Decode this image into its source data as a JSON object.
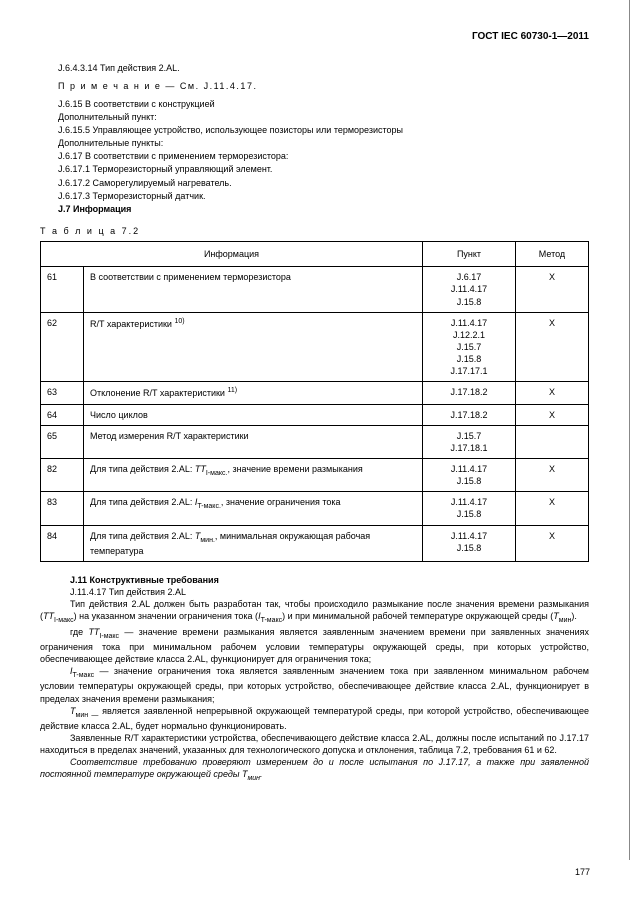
{
  "header": "ГОСТ IEC 60730-1—2011",
  "pre_text": [
    {
      "text": "J.6.4.3.14 Тип действия 2.AL."
    },
    {
      "text": "П р и м е ч а н и е  — См.  J.11.4.17.",
      "cls": "note"
    },
    {
      "text": "J.6.15 В соответствии с конструкцией"
    },
    {
      "text": "Дополнительный пункт:"
    },
    {
      "text": "J.6.15.5 Управляющее устройство, использующее позисторы или терморезисторы"
    },
    {
      "text": "Дополнительные пункты:"
    },
    {
      "text": "J.6.17 В соответствии с применением терморезистора:"
    },
    {
      "text": "J.6.17.1 Терморезисторный управляющий элемент."
    },
    {
      "text": "J.6.17.2 Саморегулируемый нагреватель."
    },
    {
      "text": "J.6.17.3 Терморезисторный датчик."
    },
    {
      "text": "J.7 Информация",
      "bold": true
    }
  ],
  "table_caption": "Т а б л и ц а   7.2",
  "table": {
    "headers": [
      "Информация",
      "Пункт",
      "Метод"
    ],
    "rows": [
      {
        "n": "61",
        "info": "В соответствии с применением терморезистора",
        "point": "J.6.17\nJ.11.4.17\nJ.15.8",
        "method": "X"
      },
      {
        "n": "62",
        "info": "R/T характеристики <sup>10)</sup>",
        "point": "J.11.4.17\nJ.12.2.1\nJ.15.7\nJ.15.8\nJ.17.17.1",
        "method": "X"
      },
      {
        "n": "63",
        "info": "Отклонение R/T характеристики <sup>11)</sup>",
        "point": "J.17.18.2",
        "method": "X"
      },
      {
        "n": "64",
        "info": "Число циклов",
        "point": "J.17.18.2",
        "method": "X"
      },
      {
        "n": "65",
        "info": "Метод измерения R/T характеристики",
        "point": "J.15.7\nJ.17.18.1",
        "method": ""
      },
      {
        "n": "82",
        "info": "Для типа действия 2.AL: <i>TT</i><sub>I-макс.</sub>, значение времени размыкания",
        "point": "J.11.4.17\nJ.15.8",
        "method": "X"
      },
      {
        "n": "83",
        "info": "Для типа действия 2.AL: <i>I</i><sub>T-макс.</sub>, значение ограничения тока",
        "point": "J.11.4.17\nJ.15.8",
        "method": "X"
      },
      {
        "n": "84",
        "info": "Для типа действия 2.AL: <i>T</i><sub>мин.</sub>, минимальная окружающая рабочая температура",
        "point": "J.11.4.17\nJ.15.8",
        "method": "X"
      }
    ]
  },
  "section_title": "J.11 Конструктивные требования",
  "post_text": [
    {
      "indent": true,
      "text": "J.11.4.17 Тип действия 2.AL"
    },
    {
      "indent": true,
      "text": "Тип действия 2.AL должен быть разработан так, чтобы происходило размыкание после значения времени размыкания (<i>TT</i><sub>I-макс</sub>) на указанном значении ограничения тока (<i>I</i><sub>T-макс</sub>) и при минимальной рабочей температуре окружающей среды (<i>T</i><sub>мин</sub>)."
    },
    {
      "indent": true,
      "text": "где <i>TT</i><sub>I-макс</sub> — значение времени размыкания является заявленным значением времени при заявленных значениях ограничения тока при минимальном рабочем условии температуры окружающей среды, при которых устройство, обеспечивающее действие класса 2.AL, функционирует для ограничения тока;"
    },
    {
      "indent": true,
      "text": "<i>I</i><sub>T-макс</sub> — значение ограничения тока является заявленным значением тока при заявленном минимальном рабочем условии температуры окружающей среды, при которых устройство, обеспечивающее действие класса 2.AL, функционирует в пределах значения времени размыкания;"
    },
    {
      "indent": true,
      "text": "<i>T</i><sub>мин —</sub> является заявленной непрерывной окружающей температурой среды, при которой устройство, обеспечивающее действие класса 2.AL, будет нормально функционировать."
    },
    {
      "indent": true,
      "text": "Заявленные R/T характеристики устройства, обеспечивающего действие класса 2.AL, должны после испытаний по J.17.17 находиться в пределах значений, указанных для технологического допуска и отклонения, таблица 7.2, требования 61 и 62."
    },
    {
      "indent": true,
      "italic": true,
      "text": "Соответствие требованию проверяют измерением до и после испытания по J.17.17, а также при заявленной постоянной температуре окружающей среды T<sub>мин</sub>."
    }
  ],
  "page_number": "177"
}
